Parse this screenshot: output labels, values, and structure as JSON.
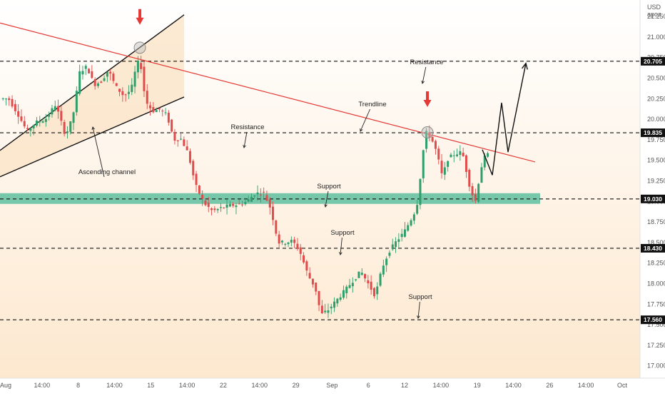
{
  "chart_data": {
    "type": "candlestick",
    "currency": "USD",
    "currency_sub": "apoz",
    "y_ticks": [
      "21.250",
      "21.000",
      "20.750",
      "20.500",
      "20.250",
      "20.000",
      "19.750",
      "19.500",
      "19.250",
      "19.000",
      "18.750",
      "18.500",
      "18.250",
      "18.000",
      "17.750",
      "17.500",
      "17.250",
      "17.000"
    ],
    "ylim": [
      16.85,
      21.45
    ],
    "x_ticks": [
      "Aug",
      "14:00",
      "8",
      "14:00",
      "15",
      "14:00",
      "22",
      "14:00",
      "29",
      "Sep",
      "6",
      "12",
      "14:00",
      "19",
      "14:00",
      "26",
      "14:00",
      "Oct"
    ],
    "levels": [
      {
        "price": 20.705,
        "label": "20.705"
      },
      {
        "price": 19.835,
        "label": "19.835"
      },
      {
        "price": 19.03,
        "label": "19.030"
      },
      {
        "price": 18.43,
        "label": "18.430"
      },
      {
        "price": 17.56,
        "label": "17.560"
      }
    ],
    "support_zone": [
      18.97,
      19.1
    ],
    "channel": {
      "upper": [
        [
          0,
          19.62
        ],
        [
          258,
          21.27
        ]
      ],
      "lower": [
        [
          0,
          19.3
        ],
        [
          258,
          20.27
        ]
      ]
    },
    "trendline": [
      [
        0,
        21.17
      ],
      [
        750,
        19.48
      ]
    ],
    "circles": [
      [
        196,
        20.87
      ],
      [
        599,
        19.84
      ]
    ],
    "down_arrows": [
      [
        196,
        21.27
      ],
      [
        599,
        20.27
      ]
    ],
    "projection": [
      [
        676,
        19.63
      ],
      [
        690,
        19.32
      ],
      [
        703,
        20.2
      ],
      [
        712,
        19.6
      ],
      [
        737,
        20.68
      ]
    ],
    "price_path": [
      [
        2,
        20.25
      ],
      [
        14,
        20.25
      ],
      [
        28,
        20.05
      ],
      [
        40,
        19.85
      ],
      [
        52,
        19.96
      ],
      [
        66,
        20.0
      ],
      [
        80,
        20.18
      ],
      [
        94,
        19.8
      ],
      [
        104,
        20.02
      ],
      [
        114,
        20.58
      ],
      [
        124,
        20.64
      ],
      [
        134,
        20.42
      ],
      [
        144,
        20.46
      ],
      [
        154,
        20.6
      ],
      [
        164,
        20.4
      ],
      [
        176,
        20.28
      ],
      [
        186,
        20.36
      ],
      [
        192,
        20.6
      ],
      [
        198,
        20.75
      ],
      [
        206,
        20.22
      ],
      [
        216,
        20.1
      ],
      [
        226,
        20.12
      ],
      [
        236,
        20.05
      ],
      [
        246,
        19.75
      ],
      [
        256,
        19.76
      ],
      [
        266,
        19.58
      ],
      [
        276,
        19.2
      ],
      [
        288,
        18.98
      ],
      [
        300,
        18.88
      ],
      [
        312,
        18.92
      ],
      [
        324,
        18.95
      ],
      [
        336,
        18.96
      ],
      [
        348,
        19.0
      ],
      [
        360,
        19.1
      ],
      [
        372,
        19.1
      ],
      [
        382,
        18.9
      ],
      [
        392,
        18.5
      ],
      [
        402,
        18.5
      ],
      [
        412,
        18.52
      ],
      [
        422,
        18.4
      ],
      [
        434,
        18.1
      ],
      [
        444,
        17.95
      ],
      [
        452,
        17.62
      ],
      [
        462,
        17.68
      ],
      [
        474,
        17.8
      ],
      [
        486,
        17.92
      ],
      [
        498,
        18.05
      ],
      [
        508,
        18.15
      ],
      [
        518,
        18.0
      ],
      [
        528,
        17.85
      ],
      [
        538,
        18.2
      ],
      [
        548,
        18.4
      ],
      [
        558,
        18.52
      ],
      [
        568,
        18.62
      ],
      [
        578,
        18.78
      ],
      [
        586,
        18.92
      ],
      [
        594,
        19.5
      ],
      [
        598,
        19.85
      ],
      [
        606,
        19.78
      ],
      [
        614,
        19.6
      ],
      [
        622,
        19.3
      ],
      [
        630,
        19.52
      ],
      [
        640,
        19.58
      ],
      [
        650,
        19.6
      ],
      [
        660,
        19.2
      ],
      [
        668,
        18.98
      ],
      [
        676,
        19.4
      ],
      [
        682,
        19.55
      ],
      [
        688,
        19.58
      ]
    ],
    "annotations": [
      {
        "text": "Resistance",
        "x": 598,
        "y": 90,
        "ax": 592,
        "ay": 117
      },
      {
        "text": "Trendline",
        "x": 522,
        "y": 149,
        "ax": 505,
        "ay": 184
      },
      {
        "text": "Resistance",
        "x": 347,
        "y": 181,
        "ax": 342,
        "ay": 207
      },
      {
        "text": "Support",
        "x": 461,
        "y": 264,
        "ax": 456,
        "ay": 290
      },
      {
        "text": "Support",
        "x": 480,
        "y": 329,
        "ax": 477,
        "ay": 357
      },
      {
        "text": "Support",
        "x": 589,
        "y": 419,
        "ax": 586,
        "ay": 446
      },
      {
        "text": "Ascending channel",
        "x": 150,
        "y": 244,
        "ax": 130,
        "ay": 178
      }
    ],
    "colors": {
      "up": "#2e9e6b",
      "down": "#e04b4b",
      "trend": "#e53935",
      "zone": "#5fbfa0",
      "channel_fill": "#fbe3c5",
      "projection": "#111111",
      "bg_top": "#ffffff",
      "bg_bottom": "#fde8cf"
    }
  }
}
